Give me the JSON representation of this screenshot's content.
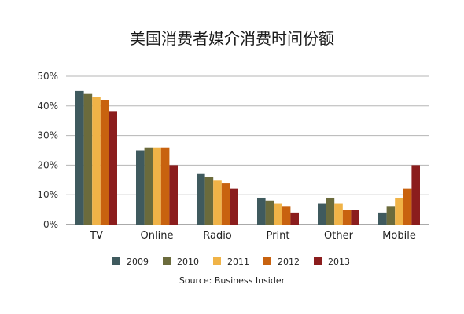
{
  "chart_data": {
    "type": "bar",
    "title": "美国消费者媒介消费时间份额",
    "xlabel": "",
    "ylabel": "",
    "ylim": [
      0,
      50
    ],
    "y_ticks": [
      "0%",
      "10%",
      "20%",
      "30%",
      "40%",
      "50%"
    ],
    "y_tick_values": [
      0,
      10,
      20,
      30,
      40,
      50
    ],
    "grid": true,
    "legend_position": "bottom",
    "categories": [
      "TV",
      "Online",
      "Radio",
      "Print",
      "Other",
      "Mobile"
    ],
    "series": [
      {
        "name": "2009",
        "color": "#3f5a5e",
        "values": [
          45,
          25,
          17,
          9,
          7,
          4
        ]
      },
      {
        "name": "2010",
        "color": "#6b6b3c",
        "values": [
          44,
          26,
          16,
          8,
          9,
          6
        ]
      },
      {
        "name": "2011",
        "color": "#f0b347",
        "values": [
          43,
          26,
          15,
          7,
          7,
          9
        ]
      },
      {
        "name": "2012",
        "color": "#c8620f",
        "values": [
          42,
          26,
          14,
          6,
          5,
          12
        ]
      },
      {
        "name": "2013",
        "color": "#8b1d1d",
        "values": [
          38,
          20,
          12,
          4,
          5,
          20
        ]
      }
    ],
    "source": "Source: Business Insider"
  }
}
